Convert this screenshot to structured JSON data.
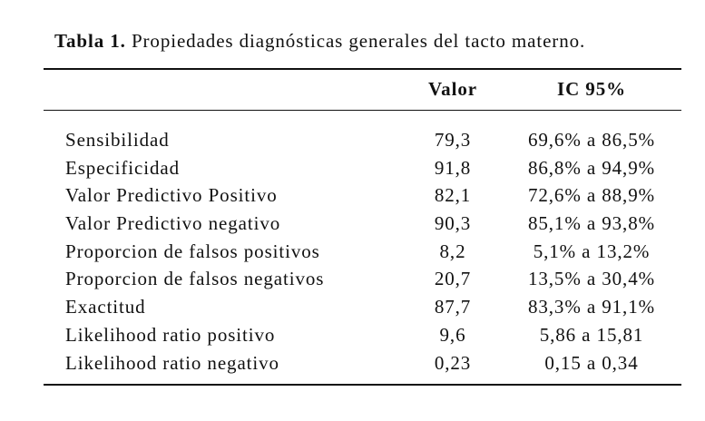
{
  "caption": {
    "lead": "Tabla 1.",
    "text": " Propiedades diagnósticas generales del tacto materno."
  },
  "table": {
    "headers": {
      "label": "",
      "value": "Valor",
      "ci": "IC 95%"
    },
    "rows": [
      {
        "label": "Sensibilidad",
        "value": "79,3",
        "ci": "69,6% a 86,5%"
      },
      {
        "label": "Especificidad",
        "value": "91,8",
        "ci": "86,8% a 94,9%"
      },
      {
        "label": "Valor Predictivo Positivo",
        "value": "82,1",
        "ci": "72,6% a 88,9%"
      },
      {
        "label": "Valor Predictivo negativo",
        "value": "90,3",
        "ci": "85,1% a 93,8%"
      },
      {
        "label": "Proporcion de falsos positivos",
        "value": "8,2",
        "ci": "5,1% a 13,2%"
      },
      {
        "label": "Proporcion de falsos negativos",
        "value": "20,7",
        "ci": "13,5% a 30,4%"
      },
      {
        "label": "Exactitud",
        "value": "87,7",
        "ci": "83,3% a 91,1%"
      },
      {
        "label": "Likelihood ratio positivo",
        "value": "9,6",
        "ci": "5,86 a 15,81"
      },
      {
        "label": "Likelihood ratio negativo",
        "value": "0,23",
        "ci": "0,15 a 0,34"
      }
    ]
  }
}
